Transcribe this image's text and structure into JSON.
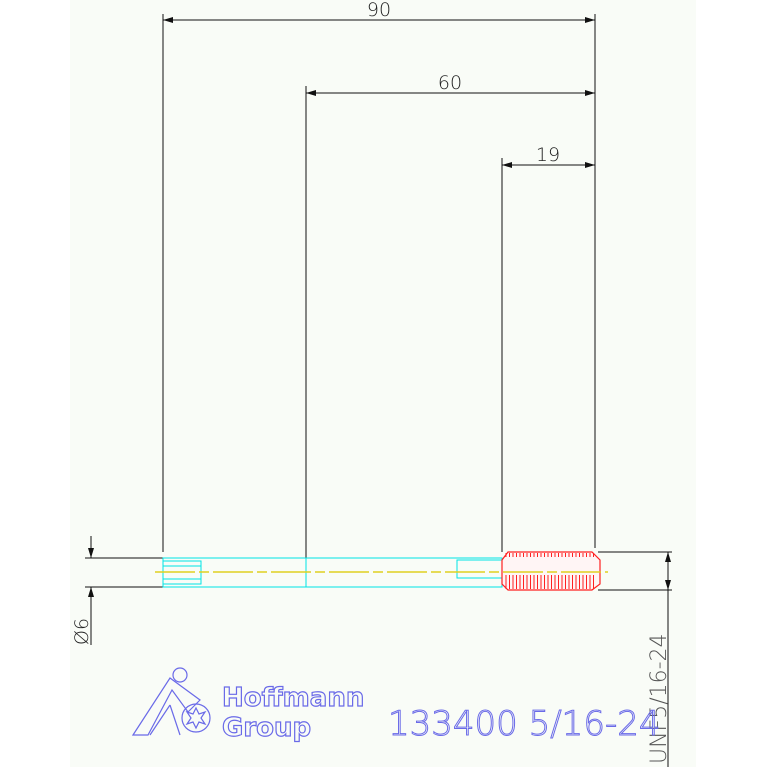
{
  "dimensions": {
    "overall_length": "90",
    "shank_length": "60",
    "thread_length": "19",
    "shank_diameter": "Ø6",
    "thread_designation": "UNF5/16-24"
  },
  "title_block": {
    "article": "133400 5/16-24",
    "logo_line1": "Hoffmann",
    "logo_line2": "Group"
  },
  "colors": {
    "background": "#f9fcf7",
    "dimension": "#111111",
    "shank": "#00e5e5",
    "thread": "#ff2020",
    "centerline": "#e0d020",
    "text": "#6a6ae8"
  }
}
